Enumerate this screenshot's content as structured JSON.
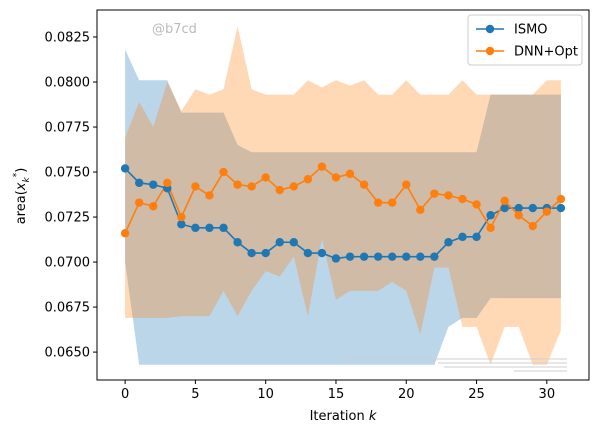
{
  "chart_data": {
    "type": "line",
    "title": "",
    "xlabel": "Iteration k",
    "ylabel": "area(x_k*)",
    "xlim": [
      -2,
      33
    ],
    "ylim": [
      0.06345,
      0.084
    ],
    "xticks": [
      0,
      5,
      10,
      15,
      20,
      25,
      30
    ],
    "yticks": [
      0.065,
      0.0675,
      0.07,
      0.0725,
      0.075,
      0.0775,
      0.08,
      0.0825
    ],
    "ytick_labels": [
      "0.0650",
      "0.0675",
      "0.0700",
      "0.0725",
      "0.0750",
      "0.0775",
      "0.0800",
      "0.0825"
    ],
    "grid": false,
    "legend_position": "top-right",
    "x": [
      0,
      1,
      2,
      3,
      4,
      5,
      6,
      7,
      8,
      9,
      10,
      11,
      12,
      13,
      14,
      15,
      16,
      17,
      18,
      19,
      20,
      21,
      22,
      23,
      24,
      25,
      26,
      27,
      28,
      29,
      30,
      31
    ],
    "series": [
      {
        "name": "ISMO",
        "color": "#1f77b4",
        "values": [
          0.0752,
          0.0744,
          0.0743,
          0.0741,
          0.0721,
          0.0719,
          0.0719,
          0.0719,
          0.0711,
          0.0705,
          0.0705,
          0.0711,
          0.0711,
          0.0705,
          0.0705,
          0.0702,
          0.0703,
          0.0703,
          0.0703,
          0.0703,
          0.0703,
          0.0703,
          0.0703,
          0.0711,
          0.0714,
          0.0714,
          0.0726,
          0.073,
          0.073,
          0.073,
          0.073,
          0.073
        ],
        "band_lower": [
          0.07,
          0.0643,
          0.0643,
          0.0643,
          0.0643,
          0.0643,
          0.0643,
          0.0643,
          0.0643,
          0.0643,
          0.0643,
          0.0643,
          0.0643,
          0.0643,
          0.0643,
          0.0643,
          0.0643,
          0.0643,
          0.0643,
          0.0643,
          0.0643,
          0.0643,
          0.0643,
          0.0664,
          0.0669,
          0.0669,
          0.068,
          0.068,
          0.068,
          0.068,
          0.068,
          0.068
        ],
        "band_upper": [
          0.0818,
          0.0801,
          0.0801,
          0.0801,
          0.0783,
          0.0783,
          0.0783,
          0.0783,
          0.0765,
          0.0761,
          0.0761,
          0.0761,
          0.0761,
          0.0761,
          0.0761,
          0.0761,
          0.0761,
          0.0761,
          0.0761,
          0.0761,
          0.0761,
          0.0761,
          0.0761,
          0.0761,
          0.0761,
          0.0761,
          0.0793,
          0.0793,
          0.0793,
          0.0793,
          0.0793,
          0.0793
        ]
      },
      {
        "name": "DNN+Opt",
        "color": "#ff7f0e",
        "values": [
          0.0716,
          0.0733,
          0.0731,
          0.0744,
          0.0725,
          0.0742,
          0.0737,
          0.075,
          0.0743,
          0.0742,
          0.0747,
          0.074,
          0.0742,
          0.0746,
          0.0753,
          0.0747,
          0.0749,
          0.0743,
          0.0733,
          0.0733,
          0.0743,
          0.0729,
          0.0738,
          0.0737,
          0.0735,
          0.0732,
          0.0719,
          0.0734,
          0.0726,
          0.072,
          0.0728,
          0.0735
        ],
        "band_lower": [
          0.0669,
          0.0669,
          0.0669,
          0.0669,
          0.067,
          0.067,
          0.067,
          0.0684,
          0.067,
          0.0684,
          0.0695,
          0.0692,
          0.0703,
          0.067,
          0.0713,
          0.0679,
          0.0684,
          0.0684,
          0.0684,
          0.0689,
          0.0684,
          0.066,
          0.0697,
          0.0697,
          0.0664,
          0.0664,
          0.0643,
          0.0664,
          0.0664,
          0.0643,
          0.0643,
          0.0662
        ],
        "band_upper": [
          0.0769,
          0.0789,
          0.0775,
          0.08,
          0.0784,
          0.0796,
          0.0793,
          0.0796,
          0.0831,
          0.0796,
          0.0793,
          0.0793,
          0.0793,
          0.0801,
          0.0797,
          0.0801,
          0.0798,
          0.0801,
          0.0793,
          0.0793,
          0.0801,
          0.0793,
          0.0793,
          0.0793,
          0.0801,
          0.0793,
          0.0793,
          0.0793,
          0.0793,
          0.0793,
          0.0801,
          0.0801
        ]
      }
    ],
    "annotations": {
      "watermark": "@b7cd"
    }
  }
}
